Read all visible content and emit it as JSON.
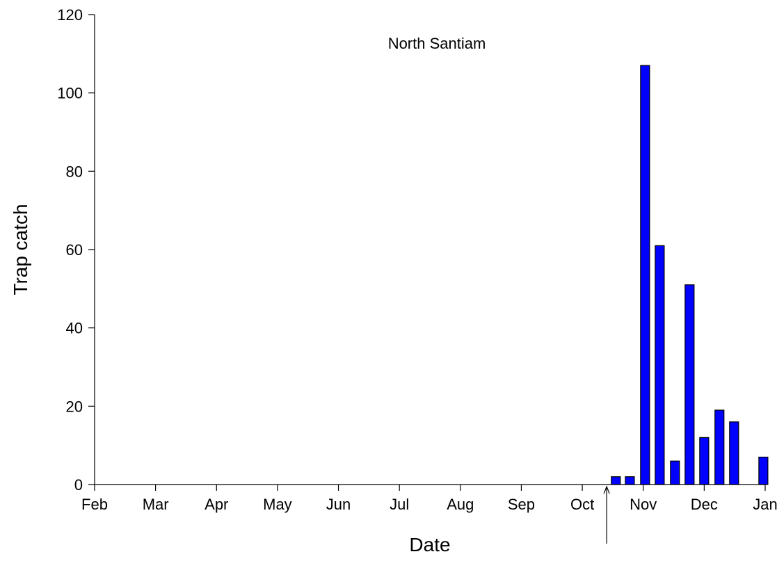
{
  "chart_data": {
    "type": "bar",
    "title": "North Santiam",
    "xlabel": "Date",
    "ylabel": "Trap catch",
    "ylim": [
      0,
      120
    ],
    "yticks": [
      0,
      20,
      40,
      60,
      80,
      100,
      120
    ],
    "xlim": [
      0,
      11
    ],
    "xtick_labels": [
      "Feb",
      "Mar",
      "Apr",
      "May",
      "Jun",
      "Jul",
      "Aug",
      "Sep",
      "Oct",
      "Nov",
      "Dec",
      "Jan"
    ],
    "bar_color": "#0000ff",
    "grid": false,
    "legend": false,
    "bars": [
      {
        "x": 8.55,
        "value": 2
      },
      {
        "x": 8.78,
        "value": 2
      },
      {
        "x": 9.03,
        "value": 107
      },
      {
        "x": 9.27,
        "value": 61
      },
      {
        "x": 9.52,
        "value": 6
      },
      {
        "x": 9.76,
        "value": 51
      },
      {
        "x": 10.0,
        "value": 12
      },
      {
        "x": 10.25,
        "value": 19
      },
      {
        "x": 10.49,
        "value": 16
      },
      {
        "x": 10.97,
        "value": 7
      }
    ],
    "annotations": [
      {
        "type": "arrow",
        "x": 8.4,
        "direction": "up",
        "label": ""
      }
    ]
  }
}
